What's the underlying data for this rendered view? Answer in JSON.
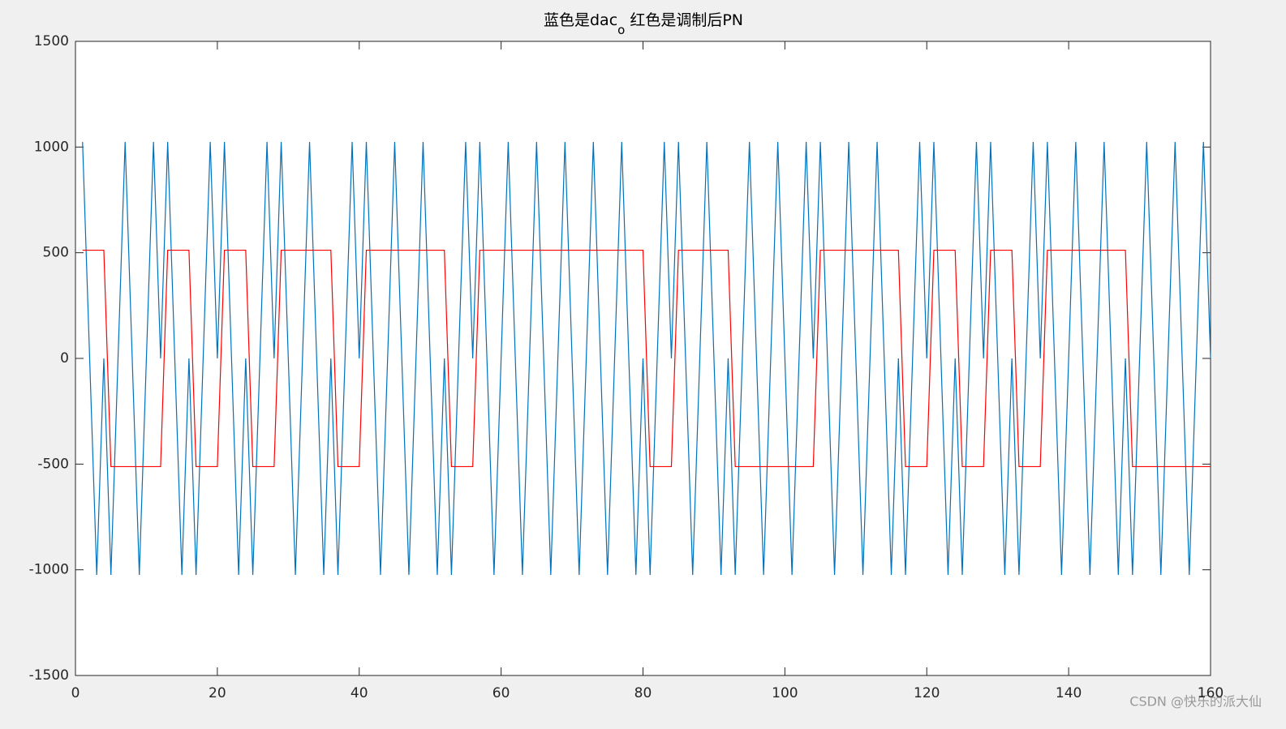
{
  "chart_data": {
    "type": "line",
    "title": "蓝色是dac",
    "title_subscript": "o",
    "title_rest": "红色是调制后PN",
    "watermark": "CSDN @快乐的派大仙",
    "x": [
      1,
      2,
      3,
      4,
      5,
      6,
      7,
      8,
      9,
      10,
      11,
      12,
      13,
      14,
      15,
      16,
      17,
      18,
      19,
      20,
      21,
      22,
      23,
      24,
      25,
      26,
      27,
      28,
      29,
      30,
      31,
      32,
      33,
      34,
      35,
      36,
      37,
      38,
      39,
      40,
      41,
      42,
      43,
      44,
      45,
      46,
      47,
      48,
      49,
      50,
      51,
      52,
      53,
      54,
      55,
      56,
      57,
      58,
      59,
      60,
      61,
      62,
      63,
      64,
      65,
      66,
      67,
      68,
      69,
      70,
      71,
      72,
      73,
      74,
      75,
      76,
      77,
      78,
      79,
      80,
      81,
      82,
      83,
      84,
      85,
      86,
      87,
      88,
      89,
      90,
      91,
      92,
      93,
      94,
      95,
      96,
      97,
      98,
      99,
      100,
      101,
      102,
      103,
      104,
      105,
      106,
      107,
      108,
      109,
      110,
      111,
      112,
      113,
      114,
      115,
      116,
      117,
      118,
      119,
      120,
      121,
      122,
      123,
      124,
      125,
      126,
      127,
      128,
      129,
      130,
      131,
      132,
      133,
      134,
      135,
      136,
      137,
      138,
      139,
      140,
      141,
      142,
      143,
      144,
      145,
      146,
      147,
      148,
      149,
      150,
      151,
      152,
      153,
      154,
      155,
      156,
      157,
      158,
      159,
      160
    ],
    "series": [
      {
        "color": "#0072bd",
        "values": [
          1024,
          0,
          -1024,
          0,
          -1024,
          0,
          1024,
          0,
          -1024,
          0,
          1024,
          0,
          1024,
          0,
          -1024,
          0,
          -1024,
          0,
          1024,
          0,
          1024,
          0,
          -1024,
          0,
          -1024,
          0,
          1024,
          0,
          1024,
          0,
          -1024,
          0,
          1024,
          0,
          -1024,
          0,
          -1024,
          0,
          1024,
          0,
          1024,
          0,
          -1024,
          0,
          1024,
          0,
          -1024,
          0,
          1024,
          0,
          -1024,
          0,
          -1024,
          0,
          1024,
          0,
          1024,
          0,
          -1024,
          0,
          1024,
          0,
          -1024,
          0,
          1024,
          0,
          -1024,
          0,
          1024,
          0,
          -1024,
          0,
          1024,
          0,
          -1024,
          0,
          1024,
          0,
          -1024,
          0,
          -1024,
          0,
          1024,
          0,
          1024,
          0,
          -1024,
          0,
          1024,
          0,
          -1024,
          0,
          -1024,
          0,
          1024,
          0,
          -1024,
          0,
          1024,
          0,
          -1024,
          0,
          1024,
          0,
          1024,
          0,
          -1024,
          0,
          1024,
          0,
          -1024,
          0,
          1024,
          0,
          -1024,
          0,
          -1024,
          0,
          1024,
          0,
          1024,
          0,
          -1024,
          0,
          -1024,
          0,
          1024,
          0,
          1024,
          0,
          -1024,
          0,
          -1024,
          0,
          1024,
          0,
          1024,
          0,
          -1024,
          0,
          1024,
          0,
          -1024,
          0,
          1024,
          0,
          -1024,
          0,
          -1024,
          0,
          1024,
          0,
          -1024,
          0,
          1024,
          0,
          -1024,
          0,
          1024,
          0
        ]
      },
      {
        "color": "#ff0000",
        "values": [
          512,
          512,
          512,
          512,
          -512,
          -512,
          -512,
          -512,
          -512,
          -512,
          -512,
          -512,
          512,
          512,
          512,
          512,
          -512,
          -512,
          -512,
          -512,
          512,
          512,
          512,
          512,
          -512,
          -512,
          -512,
          -512,
          512,
          512,
          512,
          512,
          512,
          512,
          512,
          512,
          -512,
          -512,
          -512,
          -512,
          512,
          512,
          512,
          512,
          512,
          512,
          512,
          512,
          512,
          512,
          512,
          512,
          -512,
          -512,
          -512,
          -512,
          512,
          512,
          512,
          512,
          512,
          512,
          512,
          512,
          512,
          512,
          512,
          512,
          512,
          512,
          512,
          512,
          512,
          512,
          512,
          512,
          512,
          512,
          512,
          512,
          -512,
          -512,
          -512,
          -512,
          512,
          512,
          512,
          512,
          512,
          512,
          512,
          512,
          -512,
          -512,
          -512,
          -512,
          -512,
          -512,
          -512,
          -512,
          -512,
          -512,
          -512,
          -512,
          512,
          512,
          512,
          512,
          512,
          512,
          512,
          512,
          512,
          512,
          512,
          512,
          -512,
          -512,
          -512,
          -512,
          512,
          512,
          512,
          512,
          -512,
          -512,
          -512,
          -512,
          512,
          512,
          512,
          512,
          -512,
          -512,
          -512,
          -512,
          512,
          512,
          512,
          512,
          512,
          512,
          512,
          512,
          512,
          512,
          512,
          512,
          -512,
          -512,
          -512,
          -512,
          -512,
          -512,
          -512,
          -512,
          -512,
          -512,
          -512,
          -512
        ]
      }
    ],
    "xlim": [
      0,
      160
    ],
    "ylim": [
      -1500,
      1500
    ],
    "xticks": [
      0,
      20,
      40,
      60,
      80,
      100,
      120,
      140,
      160
    ],
    "yticks": [
      -1500,
      -1000,
      -500,
      0,
      500,
      1000,
      1500
    ]
  }
}
